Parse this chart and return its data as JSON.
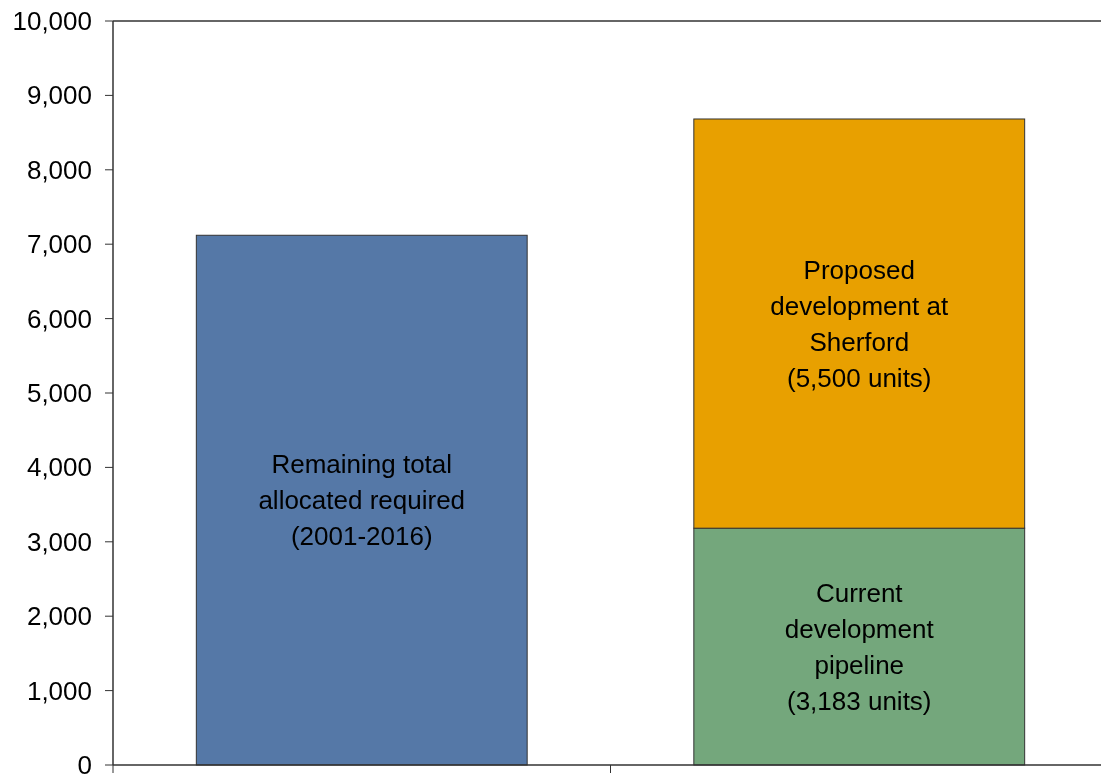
{
  "chart_data": {
    "type": "bar",
    "stacked": true,
    "categories": [
      null,
      null
    ],
    "series": [
      {
        "name": "Remaining total allocated required (2001-2016)",
        "color": "#5578a7",
        "values": [
          7120,
          null
        ]
      },
      {
        "name": "Current development pipeline (3,183 units)",
        "color": "#74a77c",
        "values": [
          null,
          3183
        ]
      },
      {
        "name": "Proposed development at Sherford (5,500 units)",
        "color": "#e8a000",
        "values": [
          null,
          5500
        ]
      }
    ],
    "ylim": [
      0,
      10000
    ],
    "yticks": [
      0,
      {
        "value": 1000,
        "label": "1,000"
      },
      {
        "value": 2000,
        "label": "2,000"
      },
      {
        "value": 3000,
        "label": "3,000"
      },
      {
        "value": 4000,
        "label": "4,000"
      },
      {
        "value": 5000,
        "label": "5,000"
      },
      {
        "value": 6000,
        "label": "6,000"
      },
      {
        "value": 7000,
        "label": "7,000"
      },
      {
        "value": 8000,
        "label": "8,000"
      },
      {
        "value": 9000,
        "label": "9,000"
      },
      {
        "value": 10000,
        "label": "10,000"
      }
    ]
  }
}
